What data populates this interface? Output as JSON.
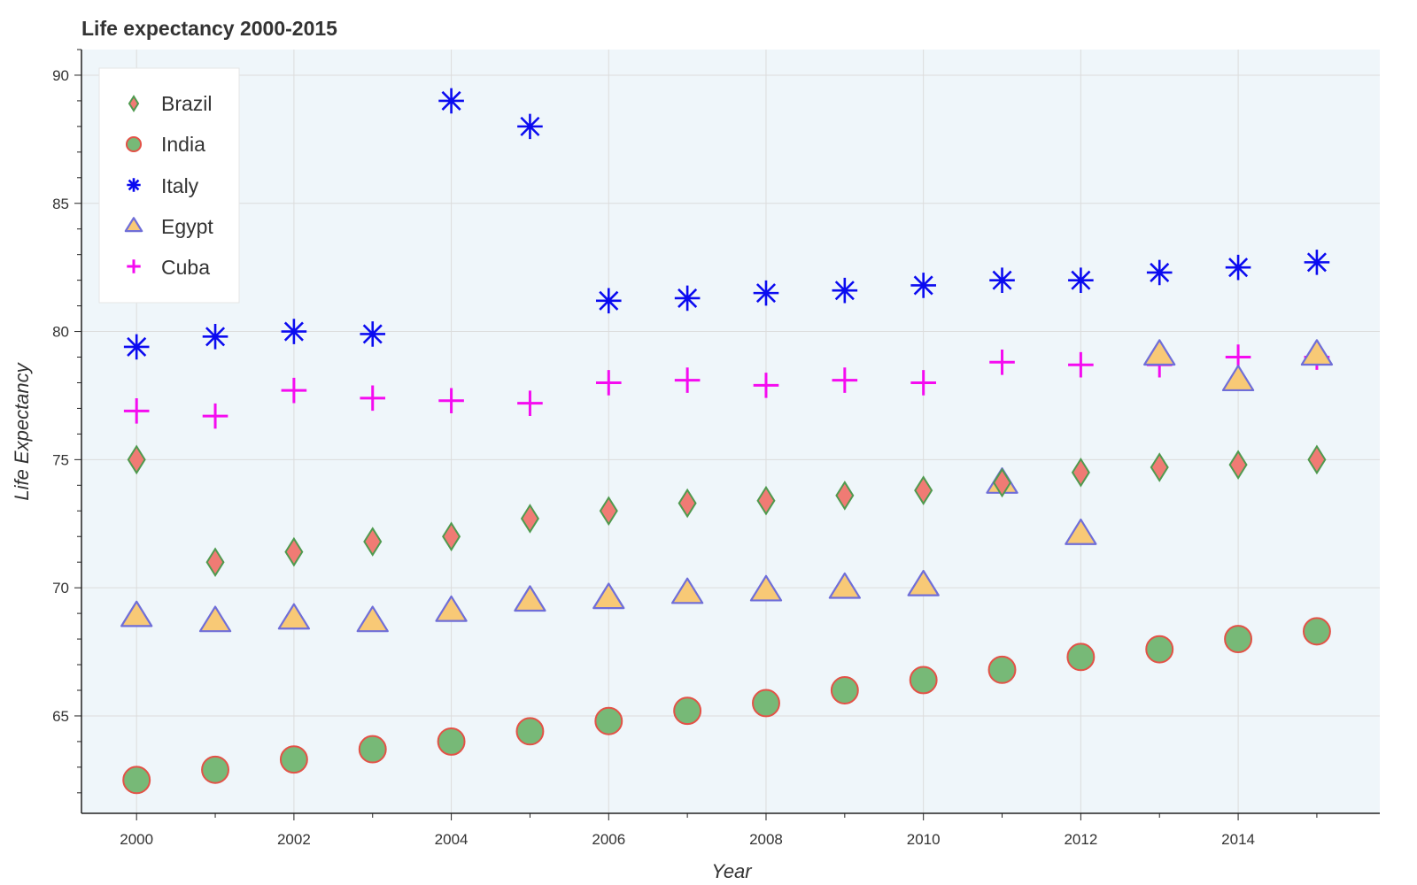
{
  "chart_data": {
    "type": "scatter",
    "title": "Life expectancy 2000-2015",
    "xlabel": "Year",
    "ylabel": "Life Expectancy",
    "xlim": [
      1999.3,
      2015.8
    ],
    "ylim": [
      61.2,
      91.0
    ],
    "x_ticks": [
      2000,
      2002,
      2004,
      2006,
      2008,
      2010,
      2012,
      2014
    ],
    "x_tick_labels": [
      "2000",
      "2002",
      "2004",
      "2006",
      "2008",
      "2010",
      "2012",
      "2014"
    ],
    "y_ticks": [
      65,
      70,
      75,
      80,
      85,
      90
    ],
    "y_tick_labels": [
      "65",
      "70",
      "75",
      "80",
      "85",
      "90"
    ],
    "grid": true,
    "legend_position": "top-left",
    "plot_background": "#eff6fa",
    "series": [
      {
        "name": "Brazil",
        "marker": "diamond",
        "fill": "#f07b74",
        "stroke": "#4f9a4f",
        "x": [
          2000,
          2001,
          2002,
          2003,
          2004,
          2005,
          2006,
          2007,
          2008,
          2009,
          2010,
          2011,
          2012,
          2013,
          2014,
          2015
        ],
        "values": [
          75.0,
          71.0,
          71.4,
          71.8,
          72.0,
          72.7,
          73.0,
          73.3,
          73.4,
          73.6,
          73.8,
          74.1,
          74.5,
          74.7,
          74.8,
          75.0
        ]
      },
      {
        "name": "India",
        "marker": "circle",
        "fill": "#77b977",
        "stroke": "#e35247",
        "x": [
          2000,
          2001,
          2002,
          2003,
          2004,
          2005,
          2006,
          2007,
          2008,
          2009,
          2010,
          2011,
          2012,
          2013,
          2014,
          2015
        ],
        "values": [
          62.5,
          62.9,
          63.3,
          63.7,
          64.0,
          64.4,
          64.8,
          65.2,
          65.5,
          66.0,
          66.4,
          66.8,
          67.3,
          67.6,
          68.0,
          68.3
        ]
      },
      {
        "name": "Italy",
        "marker": "asterisk",
        "fill": "none",
        "stroke": "#0b0bf0",
        "x": [
          2000,
          2001,
          2002,
          2003,
          2004,
          2005,
          2006,
          2007,
          2008,
          2009,
          2010,
          2011,
          2012,
          2013,
          2014,
          2015
        ],
        "values": [
          79.4,
          79.8,
          80.0,
          79.9,
          89.0,
          88.0,
          81.2,
          81.3,
          81.5,
          81.6,
          81.8,
          82.0,
          82.0,
          82.3,
          82.5,
          82.7
        ]
      },
      {
        "name": "Egypt",
        "marker": "triangle",
        "fill": "#f8c976",
        "stroke": "#6f6ed8",
        "x": [
          2000,
          2001,
          2002,
          2003,
          2004,
          2005,
          2006,
          2007,
          2008,
          2009,
          2010,
          2011,
          2012,
          2013,
          2014,
          2015
        ],
        "values": [
          68.9,
          68.7,
          68.8,
          68.7,
          69.1,
          69.5,
          69.6,
          69.8,
          69.9,
          70.0,
          70.1,
          74.1,
          72.1,
          79.1,
          78.1,
          79.1
        ]
      },
      {
        "name": "Cuba",
        "marker": "cross",
        "fill": "none",
        "stroke": "#f50bf0",
        "x": [
          2000,
          2001,
          2002,
          2003,
          2004,
          2005,
          2006,
          2007,
          2008,
          2009,
          2010,
          2011,
          2012,
          2013,
          2014,
          2015
        ],
        "values": [
          76.9,
          76.7,
          77.7,
          77.4,
          77.3,
          77.2,
          78.0,
          78.1,
          77.9,
          78.1,
          78.0,
          78.8,
          78.7,
          78.7,
          79.0,
          79.0
        ]
      }
    ]
  }
}
